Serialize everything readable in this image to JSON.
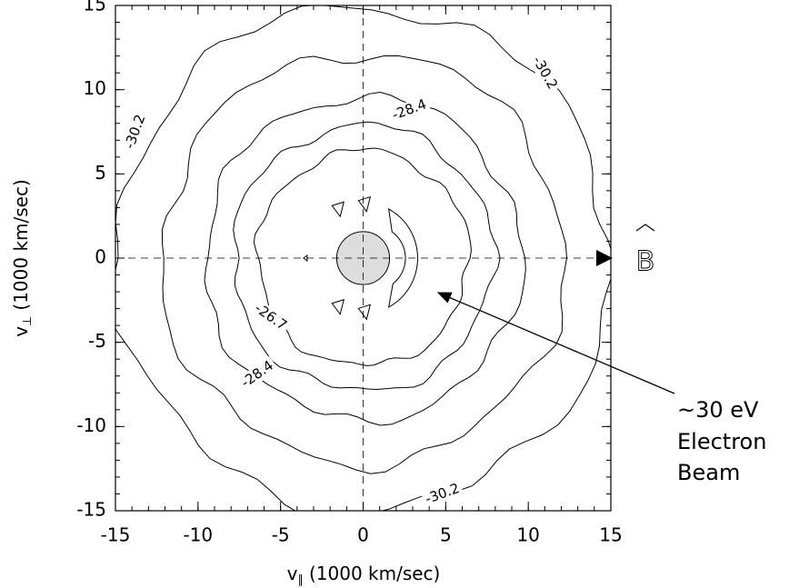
{
  "chart_data": {
    "type": "contour",
    "x_label": {
      "symbol": "v",
      "subscript": "∥",
      "unit": "(1000 km/sec)"
    },
    "y_label": {
      "symbol": "v",
      "subscript": "⊥",
      "unit": "(1000 km/sec)"
    },
    "xlim": [
      -15,
      15
    ],
    "ylim": [
      -15,
      15
    ],
    "xticks": [
      -15,
      -10,
      -5,
      0,
      5,
      10,
      15
    ],
    "yticks": [
      -15,
      -10,
      -5,
      0,
      5,
      10,
      15
    ],
    "contour_levels": [
      -26.7,
      -28.4,
      -30.2
    ],
    "field_symbol": "B",
    "annotation": [
      "~30 eV",
      "Electron",
      "Beam"
    ]
  }
}
